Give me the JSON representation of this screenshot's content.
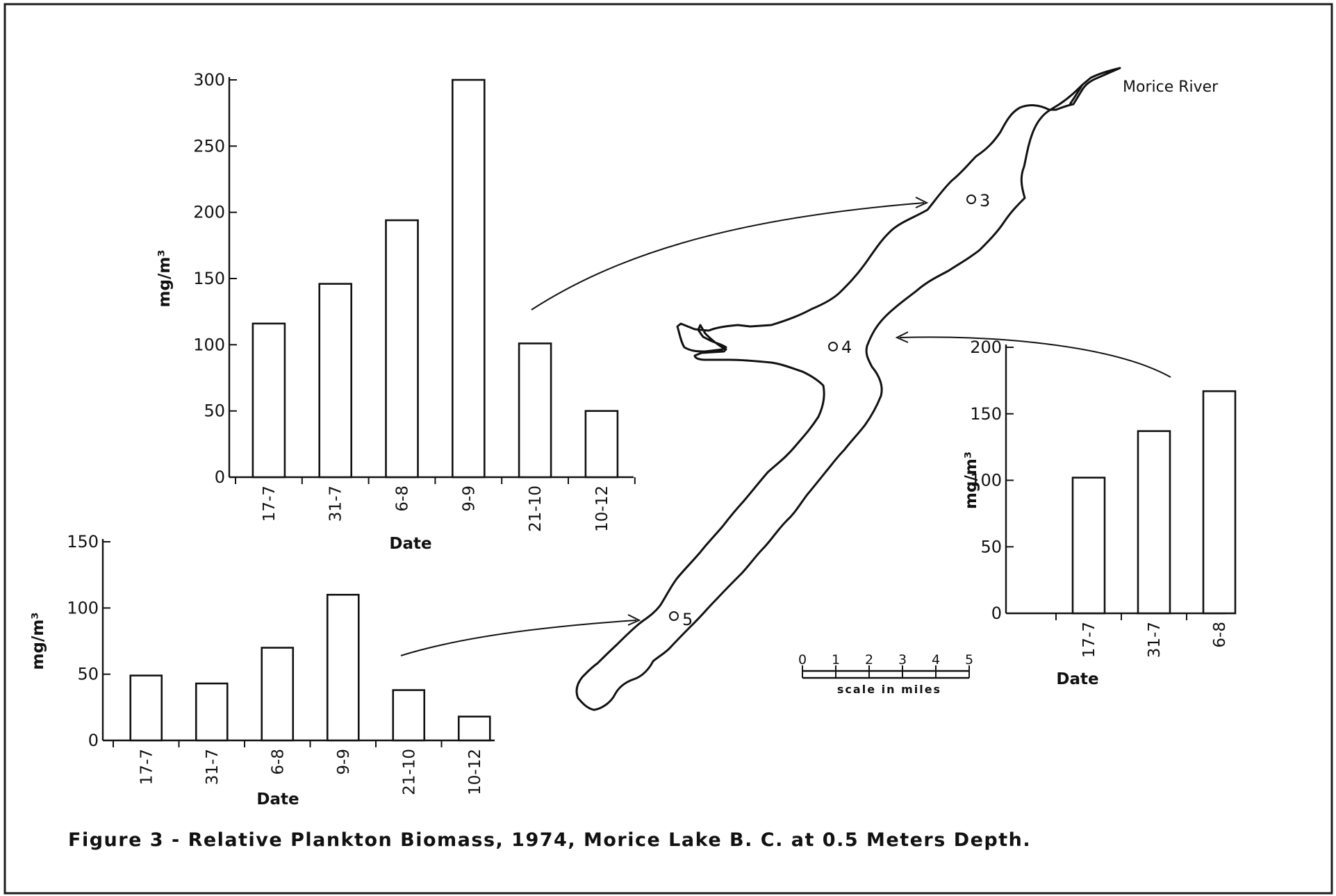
{
  "caption": "Figure  3 - Relative Plankton Biomass, 1974, Morice Lake  B. C. at  0.5 Meters  Depth.",
  "map": {
    "river_label": "Morice River",
    "stations": [
      "3",
      "4",
      "5"
    ],
    "scale": {
      "ticks": [
        "0",
        "1",
        "2",
        "3",
        "4",
        "5"
      ],
      "label": "scale in miles"
    }
  },
  "chart_data": [
    {
      "type": "bar",
      "station": "3",
      "categories": [
        "17-7",
        "31-7",
        "6-8",
        "9-9",
        "21-10",
        "10-12"
      ],
      "values": [
        116,
        146,
        194,
        300,
        101,
        50
      ],
      "ylim": [
        0,
        300
      ],
      "yticks": [
        "0",
        "50",
        "100",
        "150",
        "200",
        "250",
        "300"
      ],
      "xlabel": "Date",
      "ylabel": "mg/m³"
    },
    {
      "type": "bar",
      "station": "5",
      "categories": [
        "17-7",
        "31-7",
        "6-8",
        "9-9",
        "21-10",
        "10-12"
      ],
      "values": [
        49,
        43,
        70,
        110,
        38,
        18
      ],
      "ylim": [
        0,
        150
      ],
      "yticks": [
        "0",
        "50",
        "100",
        "150"
      ],
      "xlabel": "Date",
      "ylabel": "mg/m³"
    },
    {
      "type": "bar",
      "station": "4",
      "categories": [
        "17-7",
        "31-7",
        "6-8"
      ],
      "values": [
        102,
        137,
        167
      ],
      "ylim": [
        0,
        200
      ],
      "yticks": [
        "0",
        "50",
        "100",
        "150",
        "200"
      ],
      "xlabel": "Date",
      "ylabel": "mg/m³"
    }
  ]
}
